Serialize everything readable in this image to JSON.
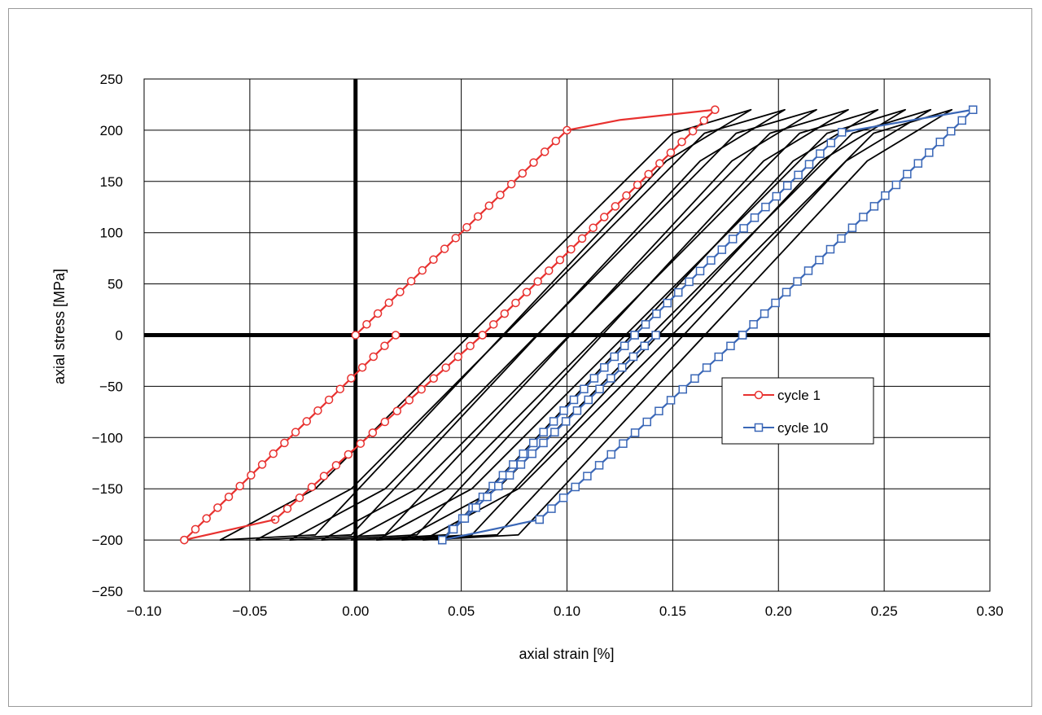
{
  "chart_data": {
    "type": "line",
    "xlabel": "axial strain [%]",
    "ylabel": "axial stress [MPa]",
    "xlim": [
      -0.1,
      0.3
    ],
    "ylim": [
      -250,
      250
    ],
    "x_ticks": [
      -0.1,
      -0.05,
      0.0,
      0.05,
      0.1,
      0.15,
      0.2,
      0.25,
      0.3
    ],
    "x_tick_labels": [
      "−0.10",
      "−0.05",
      "0.00",
      "0.05",
      "0.10",
      "0.15",
      "0.20",
      "0.25",
      "0.30"
    ],
    "y_ticks": [
      250,
      200,
      150,
      100,
      50,
      0,
      -50,
      -100,
      -150,
      -200,
      -250
    ],
    "y_tick_labels": [
      "250",
      "200",
      "150",
      "100",
      "50",
      "0",
      "−50",
      "−100",
      "−150",
      "−200",
      "−250"
    ],
    "grid": true,
    "legend_position": "right-middle",
    "series": [
      {
        "name": "cycle 1",
        "color": "#e8312f",
        "marker": "circle",
        "segments": [
          {
            "x": [
              0.0,
              0.1
            ],
            "y": [
              0,
              200
            ],
            "markers": 19
          },
          {
            "x": [
              0.1,
              0.125,
              0.17
            ],
            "y": [
              200,
              210,
              220
            ],
            "markers": 0
          },
          {
            "x": [
              0.17,
              0.06
            ],
            "y": [
              220,
              0
            ],
            "markers": 21
          },
          {
            "x": [
              0.06,
              -0.038
            ],
            "y": [
              0,
              -180
            ],
            "markers": 17
          },
          {
            "x": [
              -0.038,
              -0.081
            ],
            "y": [
              -180,
              -200
            ],
            "markers": 0
          },
          {
            "x": [
              -0.081,
              0.019
            ],
            "y": [
              -200,
              0
            ],
            "markers": 19
          }
        ]
      },
      {
        "name": "cycle 10",
        "color": "#3a67b7",
        "marker": "square",
        "segments": [
          {
            "x": [
              0.041,
              0.087
            ],
            "y": [
              -200,
              -180
            ],
            "markers": 0
          },
          {
            "x": [
              0.087,
              0.183
            ],
            "y": [
              -180,
              0
            ],
            "markers": 17
          },
          {
            "x": [
              0.183,
              0.292
            ],
            "y": [
              0,
              220
            ],
            "markers": 21
          },
          {
            "x": [
              0.292,
              0.23
            ],
            "y": [
              220,
              198
            ],
            "markers": 0
          },
          {
            "x": [
              0.23,
              0.132
            ],
            "y": [
              198,
              0
            ],
            "markers": 19
          },
          {
            "x": [
              0.132,
              0.041
            ],
            "y": [
              0,
              -200
            ],
            "markers": 19
          },
          {
            "x": [
              0.142,
              0.041
            ],
            "y": [
              0,
              -200
            ],
            "markers": 19
          }
        ]
      }
    ],
    "intermediate_cycles": {
      "color": "#000000",
      "cycles": [
        {
          "top": [
            0.187,
            220
          ],
          "knee": [
            0.15,
            197
          ],
          "bottom": [
            -0.064,
            -200
          ]
        },
        {
          "top": [
            0.203,
            220
          ],
          "knee": [
            0.165,
            197
          ],
          "bottom": [
            -0.047,
            -200
          ]
        },
        {
          "top": [
            0.218,
            220
          ],
          "knee": [
            0.18,
            197
          ],
          "bottom": [
            -0.031,
            -200
          ]
        },
        {
          "top": [
            0.233,
            220
          ],
          "knee": [
            0.196,
            197
          ],
          "bottom": [
            -0.016,
            -200
          ]
        },
        {
          "top": [
            0.247,
            220
          ],
          "knee": [
            0.21,
            197
          ],
          "bottom": [
            -0.002,
            -200
          ]
        },
        {
          "top": [
            0.26,
            220
          ],
          "knee": [
            0.223,
            197
          ],
          "bottom": [
            0.01,
            -200
          ]
        },
        {
          "top": [
            0.272,
            220
          ],
          "knee": [
            0.235,
            197
          ],
          "bottom": [
            0.022,
            -200
          ]
        },
        {
          "top": [
            0.282,
            220
          ],
          "knee": [
            0.245,
            197
          ],
          "bottom": [
            0.032,
            -200
          ]
        }
      ]
    }
  }
}
